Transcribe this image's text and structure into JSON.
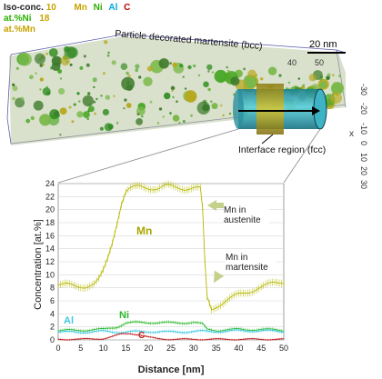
{
  "atom_probe": {
    "legend": {
      "prefix": "Iso-conc.",
      "value_mn": "10",
      "line2_label": "at.%Ni",
      "value_ni": "18",
      "line3_label": "at.%Mn",
      "elements": [
        {
          "label": "Mn",
          "color": "#c9a400"
        },
        {
          "label": "Ni",
          "color": "#2bb000"
        },
        {
          "label": "Al",
          "color": "#00a8d8"
        },
        {
          "label": "C",
          "color": "#c00000"
        }
      ]
    },
    "labels": {
      "martensite": "Particle decorated martensite (bcc)",
      "interface": "Interface region (fcc)",
      "scale_bar": "20 nm"
    },
    "axis_ticks_right": [
      "-30",
      "-20",
      "-10",
      "0",
      "10",
      "20",
      "30"
    ],
    "axis_right_label": "x",
    "axis_top_ticks": [
      "40",
      "50"
    ]
  },
  "chart_data": {
    "type": "line",
    "xlabel": "Distance [nm]",
    "ylabel": "Concentration [at.%]",
    "xlim": [
      0,
      50
    ],
    "ylim": [
      0,
      24
    ],
    "x_ticks": [
      0,
      5,
      10,
      15,
      20,
      25,
      30,
      35,
      40,
      45,
      50
    ],
    "y_ticks": [
      0,
      2,
      4,
      6,
      8,
      10,
      12,
      14,
      16,
      18,
      20,
      22,
      24
    ],
    "series": [
      {
        "name": "Mn",
        "color": "#b5b800",
        "points": [
          [
            0,
            8.5
          ],
          [
            2,
            8.4
          ],
          [
            4,
            8.2
          ],
          [
            6,
            8.3
          ],
          [
            8,
            8.6
          ],
          [
            9,
            9.2
          ],
          [
            10,
            10.5
          ],
          [
            11,
            12.5
          ],
          [
            12,
            15
          ],
          [
            13,
            18
          ],
          [
            14,
            21
          ],
          [
            15,
            22.8
          ],
          [
            16,
            23.2
          ],
          [
            18,
            23.5
          ],
          [
            20,
            23.4
          ],
          [
            22,
            23.3
          ],
          [
            24,
            23.6
          ],
          [
            26,
            23.4
          ],
          [
            28,
            23.3
          ],
          [
            30,
            23.4
          ],
          [
            31.5,
            23.2
          ],
          [
            32,
            20
          ],
          [
            32.5,
            12
          ],
          [
            33,
            6.5
          ],
          [
            34,
            4.7
          ],
          [
            35,
            5.2
          ],
          [
            36,
            5.6
          ],
          [
            38,
            6.3
          ],
          [
            40,
            6.9
          ],
          [
            42,
            7.4
          ],
          [
            44,
            7.9
          ],
          [
            46,
            8.3
          ],
          [
            48,
            8.7
          ],
          [
            50,
            9.0
          ]
        ]
      },
      {
        "name": "Ni",
        "color": "#2db82d",
        "points": [
          [
            0,
            1.4
          ],
          [
            5,
            1.5
          ],
          [
            10,
            1.6
          ],
          [
            13,
            2.0
          ],
          [
            15,
            2.6
          ],
          [
            20,
            2.7
          ],
          [
            25,
            2.6
          ],
          [
            30,
            2.7
          ],
          [
            32,
            2.4
          ],
          [
            33,
            1.6
          ],
          [
            35,
            1.5
          ],
          [
            40,
            1.6
          ],
          [
            45,
            1.6
          ],
          [
            50,
            1.5
          ]
        ]
      },
      {
        "name": "Al",
        "color": "#3ec8e0",
        "points": [
          [
            0,
            1.2
          ],
          [
            5,
            1.2
          ],
          [
            10,
            1.3
          ],
          [
            15,
            1.2
          ],
          [
            20,
            1.3
          ],
          [
            25,
            1.2
          ],
          [
            30,
            1.3
          ],
          [
            35,
            1.3
          ],
          [
            40,
            1.4
          ],
          [
            45,
            1.4
          ],
          [
            50,
            1.3
          ]
        ]
      },
      {
        "name": "C",
        "color": "#c02020",
        "points": [
          [
            0,
            0.1
          ],
          [
            5,
            0.1
          ],
          [
            10,
            0.2
          ],
          [
            12,
            0.5
          ],
          [
            14,
            0.9
          ],
          [
            16,
            1.0
          ],
          [
            18,
            0.8
          ],
          [
            20,
            0.4
          ],
          [
            22,
            0.2
          ],
          [
            25,
            0.1
          ],
          [
            30,
            0.1
          ],
          [
            35,
            0.1
          ],
          [
            40,
            0.1
          ],
          [
            45,
            0.1
          ],
          [
            50,
            0.1
          ]
        ]
      }
    ],
    "series_labels": {
      "mn": "Mn",
      "ni": "Ni",
      "al": "Al",
      "c": "C"
    },
    "annotations": [
      {
        "text": "Mn in austenite"
      },
      {
        "text": "Mn in martensite"
      }
    ]
  }
}
